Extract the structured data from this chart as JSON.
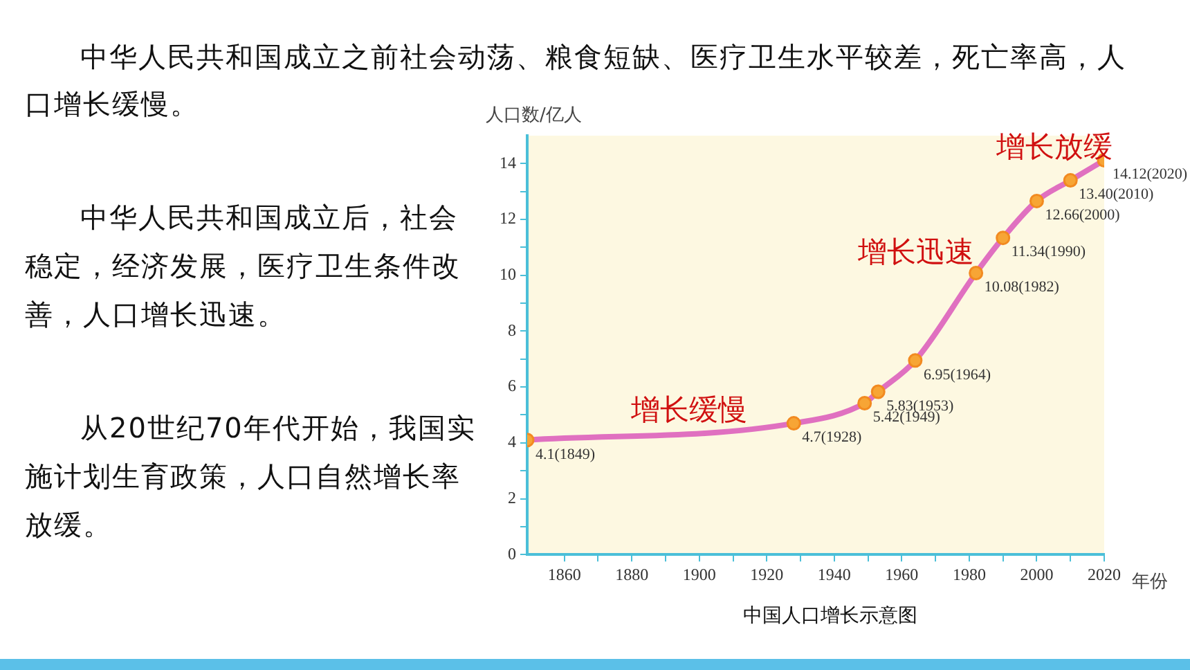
{
  "chart_data": {
    "type": "line",
    "title": "中国人口增长示意图",
    "xlabel": "年份",
    "ylabel": "人口数/亿人",
    "x": [
      1849,
      1928,
      1949,
      1953,
      1964,
      1982,
      1990,
      2000,
      2010,
      2020
    ],
    "series": [
      {
        "color": "#e070c0",
        "values": [
          4.1,
          4.7,
          5.42,
          5.83,
          6.95,
          10.08,
          11.34,
          12.66,
          13.4,
          14.12
        ],
        "value_labels": [
          "4.1(1849)",
          "4.7(1928)",
          "5.42(1949)",
          "5.83(1953)",
          "6.95(1964)",
          "10.08(1982)",
          "11.34(1990)",
          "12.66(2000)",
          "13.40(2010)",
          "14.12(2020)"
        ]
      }
    ],
    "xlim": [
      1849,
      2020
    ],
    "xticks": [
      1860,
      {
        "value": 1870,
        "label": null
      },
      1880,
      {
        "value": 1890,
        "label": null
      },
      1900,
      {
        "value": 1910,
        "label": null
      },
      1920,
      {
        "value": 1930,
        "label": null
      },
      1940,
      {
        "value": 1950,
        "label": null
      },
      1960,
      {
        "value": 1970,
        "label": null
      },
      1980,
      {
        "value": 1990,
        "label": null
      },
      2000,
      {
        "value": 2010,
        "label": null
      },
      2020
    ],
    "ylim": [
      0,
      15
    ],
    "yticks": [
      0,
      {
        "value": 1,
        "label": null
      },
      2,
      {
        "value": 3,
        "label": null
      },
      4,
      {
        "value": 5,
        "label": null
      },
      6,
      {
        "value": 7,
        "label": null
      },
      8,
      {
        "value": 9,
        "label": null
      },
      10,
      {
        "value": 11,
        "label": null
      },
      12,
      {
        "value": 13,
        "label": null
      },
      14
    ],
    "grid": false,
    "legend": false,
    "marker": "circle",
    "line_style": "solid",
    "annotations": [
      "中华人民共和国成立之前社会动荡、粮食短缺、医疗卫生水平较差，死亡率高，人口增长缓慢。",
      "中华人民共和国成立后，社会稳定，经济发展，医疗卫生条件改善，人口增长迅速。",
      "从20世纪70年代开始，我国实施计划生育政策，人口自然增长率放缓。",
      "增长缓慢",
      "增长迅速",
      "增长放缓"
    ]
  }
}
